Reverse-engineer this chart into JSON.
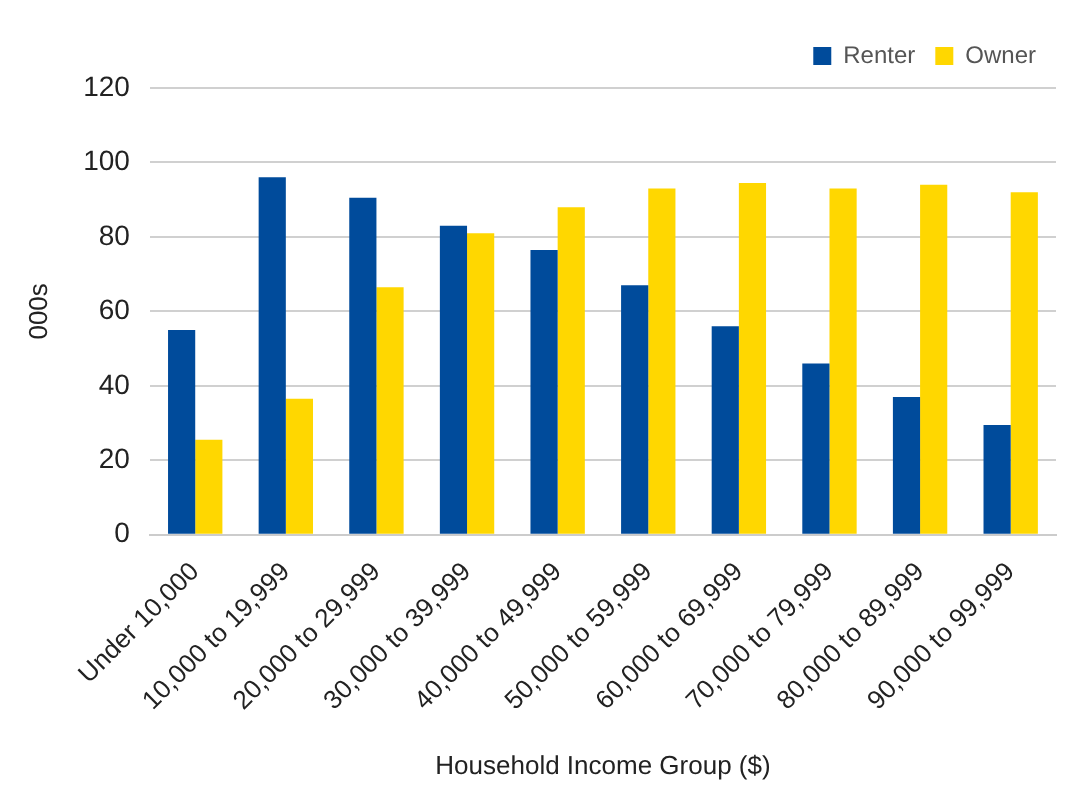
{
  "chart_data": {
    "type": "bar",
    "xlabel": "Household Income Group ($)",
    "ylabel": "000s",
    "categories": [
      "Under 10,000",
      "10,000 to 19,999",
      "20,000 to 29,999",
      "30,000 to 39,999",
      "40,000 to 49,999",
      "50,000 to 59,999",
      "60,000 to 69,999",
      "70,000 to 79,999",
      "80,000 to 89,999",
      "90,000 to 99,999"
    ],
    "series": [
      {
        "name": "Renter",
        "color": "#004b9b",
        "values": [
          55,
          96,
          90.5,
          83,
          76.5,
          67,
          56,
          46,
          37,
          29.5
        ]
      },
      {
        "name": "Owner",
        "color": "#ffd700",
        "values": [
          25.5,
          36.5,
          66.5,
          81,
          88,
          93,
          94.5,
          93,
          94,
          92
        ]
      }
    ],
    "ylim": [
      0,
      120
    ],
    "yticks": [
      0,
      20,
      40,
      60,
      80,
      100,
      120
    ],
    "grid": "y",
    "legend": "top right"
  }
}
